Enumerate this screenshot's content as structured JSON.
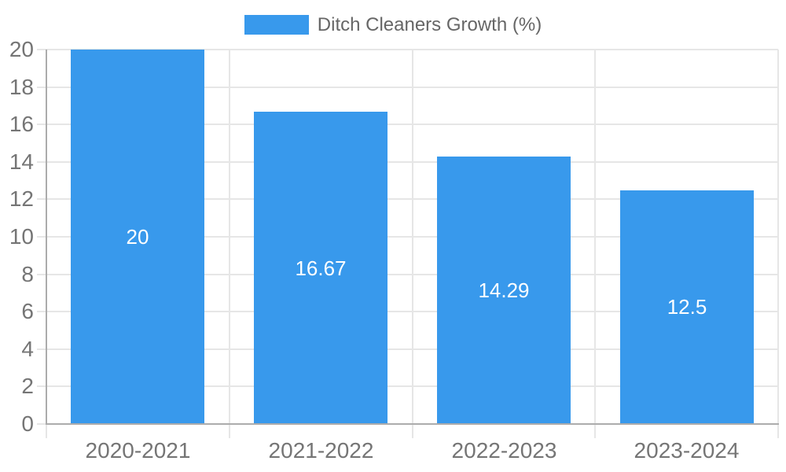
{
  "legend": {
    "label": "Ditch Cleaners Growth (%)",
    "swatch_color": "#3899EC"
  },
  "chart_data": {
    "type": "bar",
    "title": "Ditch Cleaners Growth (%)",
    "categories": [
      "2020-2021",
      "2021-2022",
      "2022-2023",
      "2023-2024"
    ],
    "values": [
      20,
      16.67,
      14.29,
      12.5
    ],
    "value_labels": [
      "20",
      "16.67",
      "14.29",
      "12.5"
    ],
    "xlabel": "",
    "ylabel": "",
    "ylim": [
      0,
      20
    ],
    "yticks": [
      0,
      2,
      4,
      6,
      8,
      10,
      12,
      14,
      16,
      18,
      20
    ],
    "grid": true,
    "legend_position": "top",
    "colors": {
      "bar": "#3899EC",
      "value_label": "#FFFFFF",
      "grid": "#E6E6E6",
      "axis_line": "#ACACAC",
      "tick_label": "#757575",
      "legend_text": "#666666"
    }
  }
}
